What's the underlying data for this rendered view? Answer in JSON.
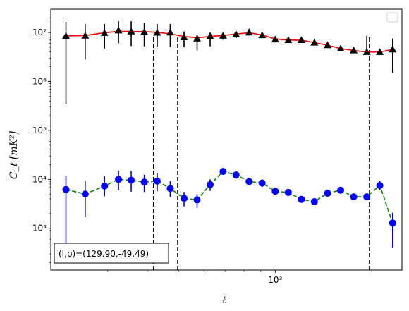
{
  "chart_data": {
    "type": "scatter",
    "xscale": "log",
    "yscale": "log",
    "xlim": [
      200,
      2480
    ],
    "ylim": [
      140,
      30000000
    ],
    "xlabel": "ℓ",
    "ylabel": "C_ℓ  [mK²]",
    "x_ticks": [
      {
        "value": 1000,
        "label": "10³"
      }
    ],
    "y_ticks": [
      {
        "value": 1000,
        "label": "10³"
      },
      {
        "value": 10000,
        "label": "10⁴"
      },
      {
        "value": 100000,
        "label": "10⁵"
      },
      {
        "value": 1000000,
        "label": "10⁶"
      },
      {
        "value": 10000000,
        "label": "10⁷"
      }
    ],
    "legend": {
      "location": "upper right",
      "entries": []
    },
    "annotation": "(l,b)=(129.90,-49.49)",
    "vlines": [
      418,
      497,
      1965
    ],
    "colors": {
      "upper_fit": "#ff0000",
      "upper_markers": "#000000",
      "lower_fit": "#008000",
      "lower_markers": "#0000ff"
    },
    "series": [
      {
        "marker": "triangle",
        "color": "#000000",
        "x": [
          223,
          256,
          294,
          325,
          356,
          391,
          429,
          471,
          520,
          571,
          627,
          688,
          755,
          829,
          910,
          1000,
          1098,
          1206,
          1324,
          1455,
          1598,
          1755,
          1927,
          2116,
          2320
        ],
        "y": [
          8500000,
          8600000,
          9800000,
          11000000,
          10500000,
          10200000,
          9900000,
          10000000,
          8000000,
          7500000,
          8400000,
          8600000,
          9200000,
          10000000,
          8800000,
          7200000,
          7000000,
          7000000,
          6200000,
          5500000,
          4700000,
          4300000,
          4000000,
          4000000,
          4500000
        ],
        "yerr_low": [
          8150000,
          5800000,
          5100000,
          5000000,
          5200000,
          5000000,
          4800000,
          5000000,
          3000000,
          3200000,
          3200000,
          1500000,
          1500000,
          1300000,
          500000,
          0,
          0,
          0,
          0,
          0,
          0,
          0,
          0,
          0,
          3000000
        ],
        "yerr_high": [
          8000000,
          6400000,
          5200000,
          6000000,
          6500000,
          5800000,
          5100000,
          5000000,
          2500000,
          1500000,
          1600000,
          1400000,
          1300000,
          2000000,
          1200000,
          0,
          0,
          0,
          0,
          0,
          0,
          0,
          4500000,
          0,
          3000000
        ]
      },
      {
        "marker": "circle",
        "color": "#0000ff",
        "x": [
          223,
          256,
          294,
          325,
          356,
          391,
          429,
          471,
          520,
          571,
          627,
          688,
          755,
          829,
          910,
          1000,
          1098,
          1206,
          1324,
          1455,
          1598,
          1755,
          1927,
          2116,
          2320
        ],
        "y": [
          6200,
          5000,
          7300,
          10000,
          9600,
          8800,
          9200,
          6500,
          4100,
          3800,
          7800,
          14500,
          12300,
          9000,
          8400,
          5700,
          5400,
          3900,
          3500,
          5200,
          6000,
          4400,
          4400,
          7500,
          1280
        ],
        "yerr_low": [
          5800,
          3300,
          2800,
          4000,
          4000,
          3300,
          3500,
          2200,
          1300,
          1200,
          2000,
          2000,
          2000,
          1500,
          1400,
          400,
          400,
          300,
          300,
          500,
          500,
          400,
          400,
          1500,
          880
        ],
        "yerr_high": [
          5800,
          4500,
          4200,
          5000,
          5200,
          3700,
          4300,
          2800,
          1400,
          1200,
          2200,
          2500,
          2200,
          1800,
          1600,
          400,
          400,
          300,
          300,
          500,
          500,
          400,
          400,
          2000,
          800
        ]
      }
    ],
    "fits": [
      {
        "color": "#ff0000",
        "style": "solid",
        "x": [
          223,
          256,
          294,
          325,
          356,
          391,
          429,
          471,
          520,
          571,
          627,
          688,
          755,
          829,
          910,
          1000,
          1098,
          1206,
          1324,
          1455,
          1598,
          1755,
          1927,
          2116,
          2320
        ],
        "y": [
          8500000,
          8700000,
          9900000,
          10600000,
          10500000,
          10400000,
          10100000,
          9400000,
          8300000,
          7800000,
          8300000,
          8700000,
          9300000,
          9900000,
          8900000,
          7400000,
          7000000,
          7000000,
          6200000,
          5500000,
          4700000,
          4300000,
          4000000,
          4000000,
          4500000
        ]
      },
      {
        "color": "#008000",
        "style": "dashed",
        "x": [
          223,
          256,
          294,
          325,
          356,
          391,
          429,
          471,
          520,
          571,
          627,
          688,
          755,
          829,
          910,
          1000,
          1098,
          1206,
          1324,
          1455,
          1598,
          1755,
          1927,
          2116,
          2320
        ],
        "y": [
          6200,
          5000,
          7300,
          10000,
          9600,
          8800,
          9200,
          6500,
          4100,
          3800,
          7800,
          14500,
          12300,
          9000,
          8400,
          5700,
          5400,
          3900,
          3500,
          5200,
          6000,
          4400,
          4400,
          7500,
          1280
        ]
      }
    ]
  }
}
